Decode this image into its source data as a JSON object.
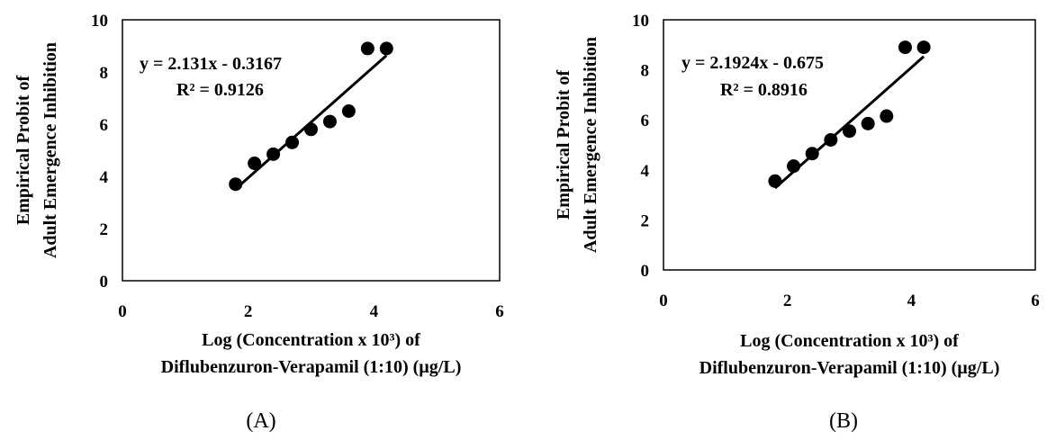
{
  "chart_data": [
    {
      "type": "scatter",
      "panel_label": "(A)",
      "xlabel_line1": "Log (Concentration x 10³) of",
      "xlabel_line2": "Diflubenzuron-Verapamil (1:10) (µg/L)",
      "ylabel_line1": "Empirical Probit of",
      "ylabel_line2": "Adult Emergence Inhibition",
      "xlim": [
        0,
        6
      ],
      "ylim": [
        0,
        10
      ],
      "xticks": [
        0,
        2,
        4,
        6
      ],
      "yticks": [
        0,
        2,
        4,
        6,
        8,
        10
      ],
      "grid": false,
      "series": [
        {
          "x": [
            1.8,
            2.1,
            2.4,
            2.7,
            3.0,
            3.3,
            3.6,
            3.9,
            4.2
          ],
          "y": [
            3.7,
            4.5,
            4.85,
            5.3,
            5.8,
            6.1,
            6.5,
            8.9,
            8.9
          ]
        }
      ],
      "trendline": {
        "slope": 2.131,
        "intercept": -0.3167,
        "x_range": [
          1.8,
          4.2
        ]
      },
      "equation": "y = 2.131x - 0.3167",
      "r_squared": "R² = 0.9126"
    },
    {
      "type": "scatter",
      "panel_label": "(B)",
      "xlabel_line1": "Log (Concentration x 10³) of",
      "xlabel_line2": "Diflubenzuron-Verapamil (1:10) (µg/L)",
      "ylabel_line1": "Empirical Probit of",
      "ylabel_line2": "Adult Emergence Inhibition",
      "xlim": [
        0,
        6
      ],
      "ylim": [
        0,
        10
      ],
      "xticks": [
        0,
        2,
        4,
        6
      ],
      "yticks": [
        0,
        2,
        4,
        6,
        8,
        10
      ],
      "grid": false,
      "series": [
        {
          "x": [
            1.8,
            2.1,
            2.4,
            2.7,
            3.0,
            3.3,
            3.6,
            3.9,
            4.2
          ],
          "y": [
            3.55,
            4.15,
            4.65,
            5.2,
            5.55,
            5.85,
            6.15,
            8.9,
            8.9
          ]
        }
      ],
      "trendline": {
        "slope": 2.1924,
        "intercept": -0.675,
        "x_range": [
          1.8,
          4.2
        ]
      },
      "equation": "y = 2.1924x - 0.675",
      "r_squared": "R² = 0.8916"
    }
  ]
}
